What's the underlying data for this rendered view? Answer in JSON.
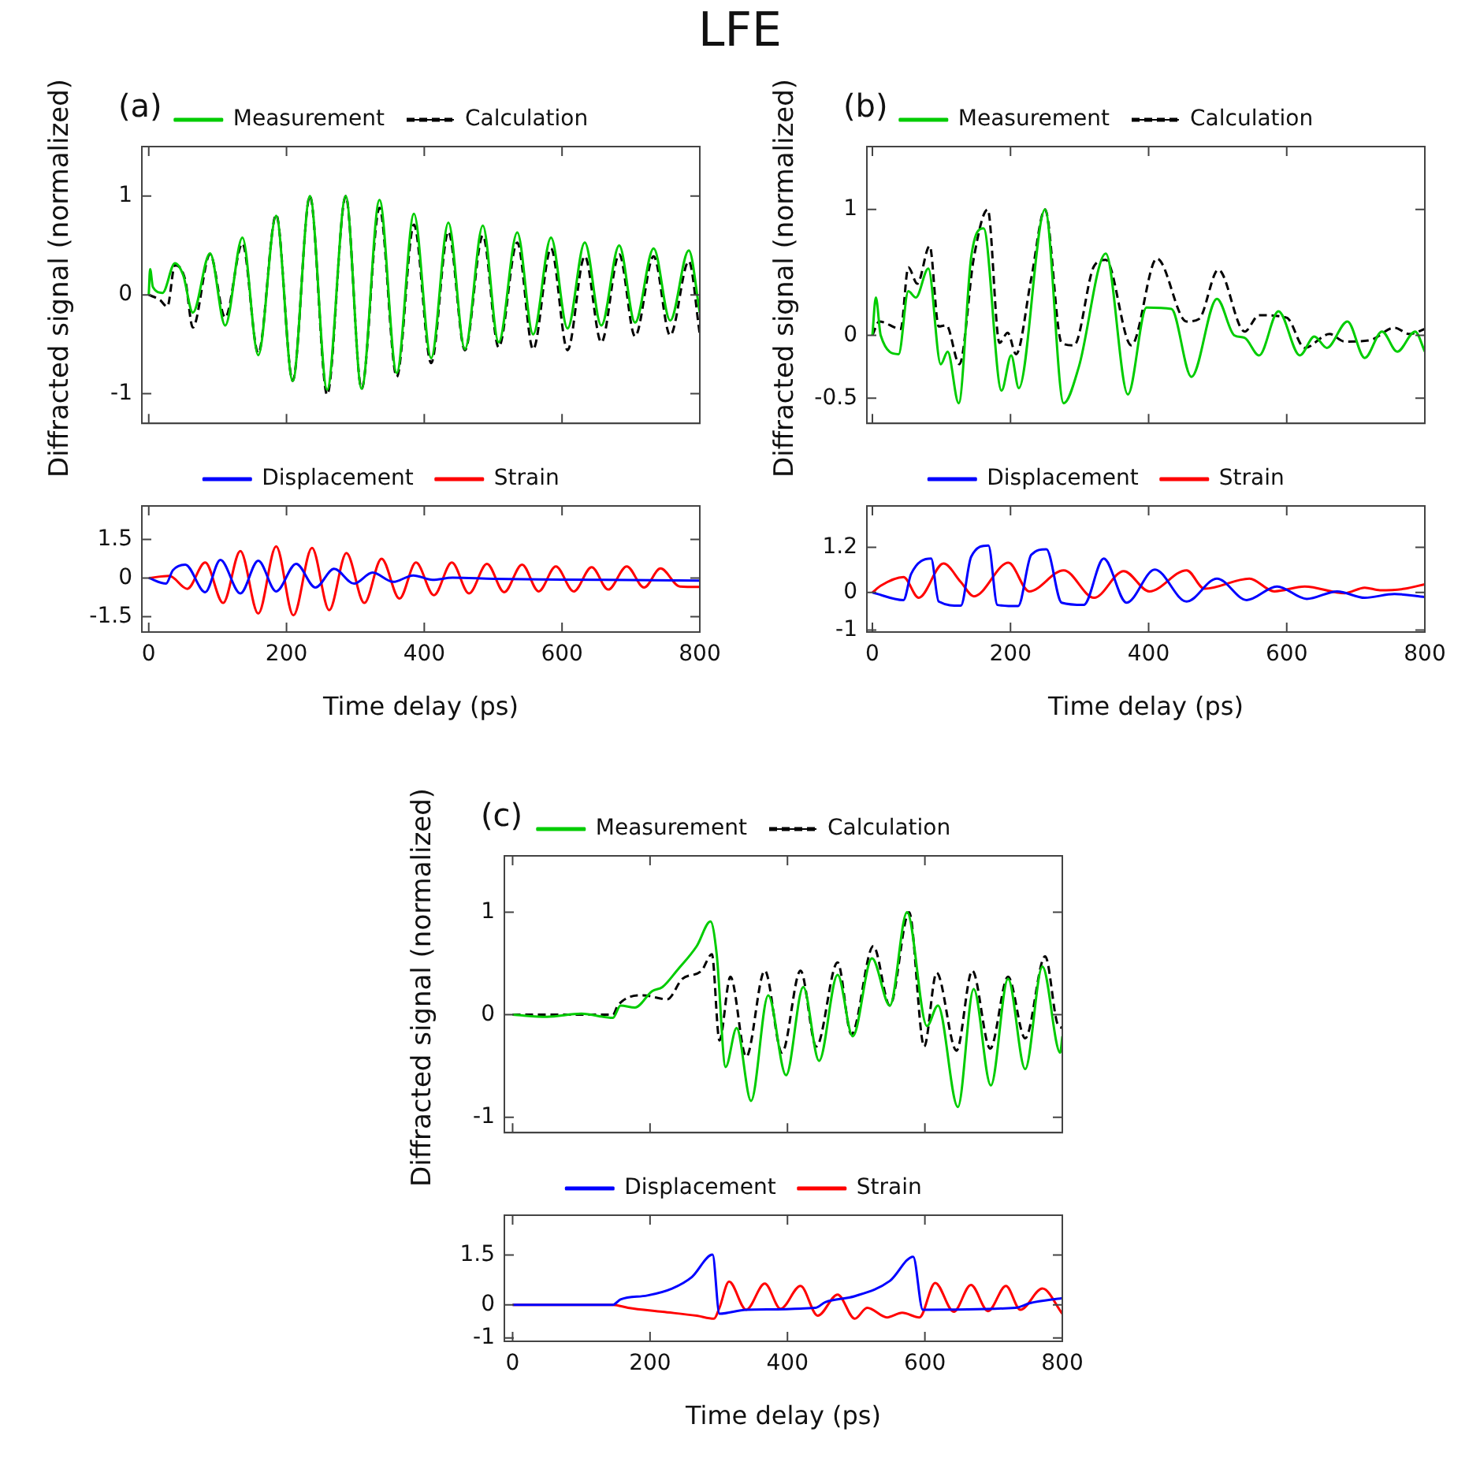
{
  "chart_data": [
    {
      "type": "line",
      "title": "LFE",
      "annotations": [
        "(a)"
      ],
      "ylabel": "Diffracted signal (normalized)",
      "tick_labels": "y",
      "grid": false,
      "legend": "top",
      "marker": "none",
      "xlim": [
        -10,
        800
      ],
      "xticks": [
        0,
        200,
        400,
        600,
        800
      ],
      "ylim": [
        -1.3,
        1.5
      ],
      "yticks": [
        -1,
        0,
        1
      ],
      "series": [
        {
          "name": "Measurement",
          "color": "#00cc00",
          "x": [
            0,
            2,
            6,
            20,
            38,
            50,
            64,
            89,
            111,
            136,
            159,
            185,
            209,
            234,
            259,
            286,
            309,
            335,
            360,
            385,
            410,
            435,
            459,
            485,
            508,
            535,
            558,
            584,
            608,
            633,
            657,
            683,
            706,
            733,
            757,
            784,
            800
          ],
          "values": [
            0,
            0.26,
            0.08,
            0.02,
            0.32,
            0.2,
            -0.18,
            0.42,
            -0.31,
            0.58,
            -0.61,
            0.8,
            -0.87,
            1.0,
            -0.96,
            1.0,
            -0.95,
            0.96,
            -0.79,
            0.82,
            -0.64,
            0.73,
            -0.55,
            0.7,
            -0.48,
            0.63,
            -0.4,
            0.58,
            -0.34,
            0.53,
            -0.31,
            0.5,
            -0.28,
            0.47,
            -0.26,
            0.45,
            -0.18
          ]
        },
        {
          "name": "Calculation",
          "color": "#000000",
          "line_style": "dashed",
          "x": [
            0,
            16,
            27,
            38,
            53,
            64,
            89,
            111,
            136,
            159,
            185,
            209,
            234,
            259,
            286,
            309,
            335,
            360,
            385,
            410,
            435,
            459,
            485,
            508,
            535,
            558,
            584,
            608,
            633,
            657,
            683,
            706,
            733,
            757,
            784,
            800
          ],
          "values": [
            0,
            -0.05,
            -0.12,
            0.3,
            0.15,
            -0.33,
            0.41,
            -0.23,
            0.52,
            -0.59,
            0.81,
            -0.87,
            1.0,
            -1.01,
            1.0,
            -0.95,
            0.88,
            -0.83,
            0.71,
            -0.69,
            0.64,
            -0.56,
            0.6,
            -0.53,
            0.53,
            -0.55,
            0.47,
            -0.56,
            0.39,
            -0.48,
            0.41,
            -0.42,
            0.39,
            -0.41,
            0.34,
            -0.4
          ]
        }
      ]
    },
    {
      "type": "line",
      "xlabel": "Time delay (ps)",
      "grid": false,
      "legend": "top",
      "marker": "none",
      "xlim": [
        -10,
        800
      ],
      "xticks": [
        0,
        200,
        400,
        600,
        800
      ],
      "ylim": [
        -2.1,
        2.8
      ],
      "yticks": [
        -1.5,
        0,
        1.5
      ],
      "series": [
        {
          "name": "Displacement",
          "color": "#0000ff",
          "x": [
            0,
            25,
            35,
            53,
            82,
            104,
            133,
            159,
            185,
            214,
            242,
            269,
            298,
            325,
            355,
            384,
            412,
            441,
            500,
            600,
            700,
            800
          ],
          "values": [
            0,
            -0.22,
            0.3,
            0.52,
            -0.55,
            0.7,
            -0.6,
            0.67,
            -0.52,
            0.55,
            -0.37,
            0.36,
            -0.22,
            0.21,
            -0.15,
            0.1,
            -0.07,
            0.01,
            -0.03,
            -0.06,
            -0.08,
            -0.1
          ]
        },
        {
          "name": "Strain",
          "color": "#ff0000",
          "x": [
            0,
            30,
            56,
            82,
            108,
            133,
            159,
            185,
            210,
            237,
            262,
            287,
            313,
            338,
            364,
            388,
            414,
            440,
            465,
            491,
            516,
            542,
            566,
            591,
            617,
            643,
            667,
            694,
            719,
            743,
            771,
            800
          ],
          "values": [
            0,
            0.08,
            -0.42,
            0.6,
            -0.97,
            1.05,
            -1.38,
            1.23,
            -1.45,
            1.17,
            -1.25,
            0.97,
            -0.97,
            0.75,
            -0.8,
            0.6,
            -0.67,
            0.6,
            -0.6,
            0.55,
            -0.55,
            0.52,
            -0.52,
            0.45,
            -0.52,
            0.42,
            -0.45,
            0.45,
            -0.37,
            0.37,
            -0.33,
            -0.35
          ]
        }
      ]
    },
    {
      "type": "line",
      "annotations": [
        "(b)"
      ],
      "ylabel": "Diffracted signal (normalized)",
      "tick_labels": "y",
      "grid": false,
      "legend": "top",
      "marker": "none",
      "xlim": [
        -8,
        800
      ],
      "xticks": [
        0,
        200,
        400,
        600,
        800
      ],
      "ylim": [
        -0.7,
        1.5
      ],
      "yticks": [
        -0.5,
        0,
        1
      ],
      "series": [
        {
          "name": "Measurement",
          "color": "#00cc00",
          "x": [
            0,
            5,
            12,
            38,
            52,
            63,
            81,
            99,
            109,
            125,
            143,
            161,
            187,
            201,
            212,
            250,
            277,
            299,
            338,
            370,
            397,
            433,
            462,
            499,
            524,
            539,
            560,
            588,
            619,
            640,
            658,
            688,
            713,
            738,
            760,
            786,
            800
          ],
          "values": [
            0,
            0.3,
            0,
            -0.15,
            0.35,
            0.3,
            0.53,
            -0.23,
            -0.13,
            -0.54,
            0.62,
            0.85,
            -0.44,
            -0.16,
            -0.42,
            1.0,
            -0.54,
            -0.25,
            0.65,
            -0.47,
            0.22,
            0.21,
            -0.33,
            0.29,
            0,
            -0.02,
            -0.16,
            0.19,
            -0.16,
            -0.01,
            -0.1,
            0.11,
            -0.18,
            0.03,
            -0.13,
            0.03,
            -0.13
          ]
        },
        {
          "name": "Calculation",
          "color": "#000000",
          "line_style": "dashed",
          "x": [
            0,
            10,
            41,
            52,
            65,
            83,
            96,
            107,
            126,
            147,
            167,
            184,
            196,
            208,
            230,
            250,
            274,
            292,
            321,
            338,
            375,
            412,
            455,
            473,
            501,
            539,
            560,
            600,
            626,
            662,
            684,
            720,
            756,
            778,
            800
          ],
          "values": [
            0,
            0.11,
            0.05,
            0.54,
            0.41,
            0.71,
            0.07,
            0.08,
            -0.23,
            0.62,
            1.0,
            -0.06,
            0.02,
            -0.15,
            0.45,
            1.0,
            -0.06,
            -0.08,
            0.55,
            0.6,
            -0.08,
            0.61,
            0.11,
            0.13,
            0.52,
            0.03,
            0.16,
            0.14,
            -0.1,
            0.01,
            -0.05,
            -0.04,
            0.06,
            0.01,
            0.05
          ]
        }
      ]
    },
    {
      "type": "line",
      "xlabel": "Time delay (ps)",
      "grid": false,
      "legend": "top",
      "marker": "none",
      "xlim": [
        -8,
        800
      ],
      "xticks": [
        0,
        200,
        400,
        600,
        800
      ],
      "ylim": [
        -1.05,
        2.3
      ],
      "yticks": [
        -1,
        0,
        1.2
      ],
      "series": [
        {
          "name": "Displacement",
          "color": "#0000ff",
          "x": [
            0,
            45,
            56,
            85,
            96,
            128,
            143,
            168,
            181,
            211,
            230,
            252,
            274,
            306,
            335,
            368,
            409,
            455,
            499,
            542,
            586,
            629,
            673,
            713,
            756,
            800
          ],
          "values": [
            0,
            -0.2,
            0.49,
            0.9,
            -0.24,
            -0.35,
            0.95,
            1.25,
            -0.33,
            -0.36,
            1.0,
            1.15,
            -0.27,
            -0.33,
            0.9,
            -0.27,
            0.61,
            -0.24,
            0.37,
            -0.2,
            0.16,
            -0.17,
            0.03,
            -0.14,
            -0.04,
            -0.12
          ]
        },
        {
          "name": "Strain",
          "color": "#ff0000",
          "x": [
            0,
            12,
            45,
            67,
            103,
            128,
            147,
            197,
            227,
            277,
            321,
            364,
            401,
            455,
            481,
            546,
            582,
            626,
            684,
            713,
            735,
            771,
            800
          ],
          "values": [
            0,
            0.18,
            0.41,
            -0.14,
            0.77,
            0.28,
            -0.1,
            0.79,
            0.03,
            0.59,
            -0.14,
            0.57,
            0.03,
            0.59,
            0.1,
            0.37,
            0.03,
            0.16,
            -0.02,
            0.13,
            0.06,
            0.1,
            0.22
          ]
        }
      ]
    },
    {
      "type": "line",
      "annotations": [
        "(c)"
      ],
      "ylabel": "Diffracted signal (normalized)",
      "tick_labels": "y",
      "grid": false,
      "legend": "top",
      "marker": "none",
      "xlim": [
        -12,
        800
      ],
      "xticks": [
        0,
        200,
        400,
        600,
        800
      ],
      "ylim": [
        -1.15,
        1.55
      ],
      "yticks": [
        -1,
        0,
        1
      ],
      "series": [
        {
          "name": "Measurement",
          "color": "#00cc00",
          "x": [
            0,
            50,
            100,
            146,
            157,
            178,
            203,
            218,
            239,
            268,
            288,
            297,
            310,
            326,
            347,
            372,
            398,
            423,
            446,
            473,
            495,
            523,
            549,
            574,
            603,
            619,
            648,
            671,
            696,
            721,
            746,
            771,
            797,
            800
          ],
          "values": [
            0,
            -0.02,
            0.01,
            -0.03,
            0.09,
            0.07,
            0.23,
            0.27,
            0.43,
            0.67,
            0.91,
            0.59,
            -0.51,
            -0.13,
            -0.84,
            0.19,
            -0.59,
            0.27,
            -0.45,
            0.39,
            -0.21,
            0.55,
            0.09,
            1.0,
            -0.11,
            0.09,
            -0.9,
            0.25,
            -0.69,
            0.35,
            -0.53,
            0.47,
            -0.37,
            -0.21
          ]
        },
        {
          "name": "Calculation",
          "color": "#000000",
          "line_style": "dashed",
          "x": [
            0,
            146,
            153,
            189,
            225,
            247,
            275,
            290,
            301,
            317,
            340,
            367,
            392,
            419,
            442,
            473,
            493,
            525,
            549,
            577,
            599,
            617,
            646,
            669,
            695,
            721,
            746,
            775,
            793,
            800
          ],
          "values": [
            0,
            0,
            0.09,
            0.19,
            0.15,
            0.35,
            0.43,
            0.59,
            -0.25,
            0.37,
            -0.41,
            0.43,
            -0.37,
            0.43,
            -0.31,
            0.51,
            -0.19,
            0.67,
            0.09,
            1.0,
            -0.31,
            0.41,
            -0.35,
            0.43,
            -0.33,
            0.37,
            -0.23,
            0.57,
            -0.09,
            -0.13
          ]
        }
      ]
    },
    {
      "type": "line",
      "xlabel": "Time delay (ps)",
      "grid": false,
      "legend": "top",
      "marker": "none",
      "xlim": [
        -12,
        800
      ],
      "xticks": [
        0,
        200,
        400,
        600,
        800
      ],
      "ylim": [
        -1.1,
        2.7
      ],
      "yticks": [
        -1,
        0,
        1.5
      ],
      "series": [
        {
          "name": "Displacement",
          "color": "#0000ff",
          "x": [
            0,
            146,
            157,
            196,
            232,
            261,
            291,
            301,
            340,
            441,
            455,
            498,
            549,
            583,
            597,
            732,
            753,
            800
          ],
          "values": [
            0,
            0,
            0.16,
            0.28,
            0.49,
            0.84,
            1.51,
            -0.27,
            -0.15,
            -0.09,
            0.08,
            0.26,
            0.72,
            1.45,
            -0.15,
            -0.09,
            0.05,
            0.2
          ]
        },
        {
          "name": "Strain",
          "color": "#ff0000",
          "x": [
            0,
            146,
            168,
            218,
            268,
            293,
            301,
            315,
            340,
            367,
            390,
            419,
            444,
            473,
            498,
            516,
            545,
            567,
            592,
            615,
            642,
            667,
            692,
            718,
            739,
            771,
            800
          ],
          "values": [
            0,
            0,
            -0.09,
            -0.21,
            -0.33,
            -0.42,
            -0.09,
            0.7,
            -0.15,
            0.64,
            -0.12,
            0.57,
            -0.33,
            0.31,
            -0.42,
            -0.09,
            -0.38,
            -0.24,
            -0.38,
            0.66,
            -0.21,
            0.6,
            -0.19,
            0.57,
            -0.15,
            0.49,
            -0.27
          ]
        }
      ]
    }
  ]
}
